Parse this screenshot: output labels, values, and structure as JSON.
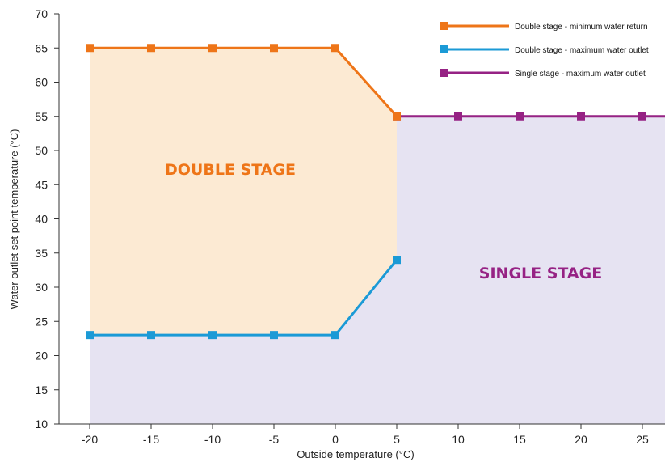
{
  "colors": {
    "double_min_return": "#EE7518",
    "double_max_outlet": "#1B9AD6",
    "single_max_outlet": "#962284",
    "double_region_fill": "#FCEAD3",
    "single_region_fill": "#E6E3F2",
    "axis": "#333333"
  },
  "chart_data": {
    "type": "line",
    "xlabel": "Outside temperature (°C)",
    "ylabel": "Water outlet set point temperature (°C)",
    "xlim": [
      -20,
      25
    ],
    "ylim": [
      10,
      70
    ],
    "x_ticks": [
      "-20",
      "-15",
      "-10",
      "-5",
      "0",
      "5",
      "10",
      "15",
      "20",
      "25"
    ],
    "y_ticks": [
      "10",
      "15",
      "20",
      "25",
      "30",
      "35",
      "40",
      "45",
      "50",
      "55",
      "60",
      "65",
      "70"
    ],
    "grid": false,
    "legend_position": "top-right",
    "series": [
      {
        "name": "Double stage - minimum water return",
        "x": [
          -20,
          -15,
          -10,
          -5,
          0,
          5
        ],
        "y": [
          65,
          65,
          65,
          65,
          65,
          55
        ]
      },
      {
        "name": "Double stage - maximum water outlet",
        "x": [
          -20,
          -15,
          -10,
          -5,
          0,
          5
        ],
        "y": [
          23,
          23,
          23,
          23,
          23,
          34
        ]
      },
      {
        "name": "Single stage - maximum water outlet",
        "x": [
          5,
          10,
          15,
          20,
          25
        ],
        "y": [
          55,
          55,
          55,
          55,
          55
        ]
      }
    ],
    "regions": [
      {
        "label": "DOUBLE STAGE"
      },
      {
        "label": "SINGLE STAGE"
      }
    ]
  }
}
